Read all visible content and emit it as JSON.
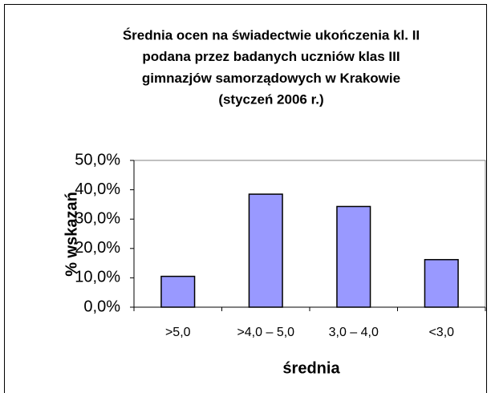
{
  "chart_data": {
    "type": "bar",
    "title": [
      "Średnia ocen na świadectwie ukończenia kl. II",
      "podana przez badanych uczniów klas III",
      "gimnazjów samorządowych w Krakowie",
      "(styczeń 2006 r.)"
    ],
    "xlabel": "średnia",
    "ylabel": "% wskazań",
    "categories": [
      ">5,0",
      ">4,0 – 5,0",
      "3,0 – 4,0",
      "<3,0"
    ],
    "values": [
      10.5,
      38.5,
      34.3,
      16.2
    ],
    "color": "#9999ff",
    "ylim": [
      0,
      50
    ],
    "yticks": [
      {
        "value": 0,
        "label": "0,0%"
      },
      {
        "value": 10,
        "label": "10,0%"
      },
      {
        "value": 20,
        "label": "20,0%"
      },
      {
        "value": 30,
        "label": "30,0%"
      },
      {
        "value": 40,
        "label": "40,0%"
      },
      {
        "value": 50,
        "label": "50,0%"
      }
    ],
    "grid": false
  }
}
